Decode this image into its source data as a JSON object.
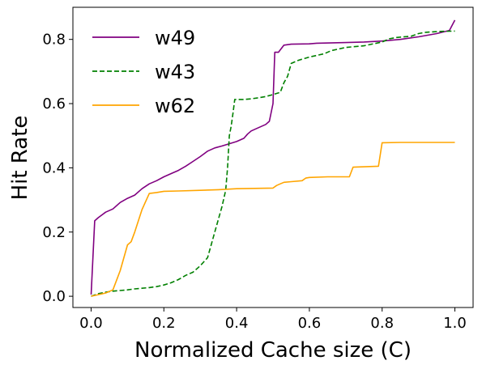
{
  "chart_data": {
    "type": "line",
    "title": "",
    "xlabel": "Normalized Cache size (C)",
    "ylabel": "Hit Rate",
    "xlim": [
      -0.05,
      1.05
    ],
    "ylim": [
      -0.035,
      0.9
    ],
    "xticks": [
      0.0,
      0.2,
      0.4,
      0.6,
      0.8,
      1.0
    ],
    "xtick_labels": [
      "0.0",
      "0.2",
      "0.4",
      "0.6",
      "0.8",
      "1.0"
    ],
    "yticks": [
      0.0,
      0.2,
      0.4,
      0.6,
      0.8
    ],
    "ytick_labels": [
      "0.0",
      "0.2",
      "0.4",
      "0.6",
      "0.8"
    ],
    "grid": false,
    "legend_position": "upper-left",
    "series": [
      {
        "name": "w49",
        "color": "#800080",
        "style": "solid",
        "points": [
          [
            0.0,
            0.005
          ],
          [
            0.01,
            0.235
          ],
          [
            0.02,
            0.245
          ],
          [
            0.04,
            0.262
          ],
          [
            0.06,
            0.272
          ],
          [
            0.08,
            0.292
          ],
          [
            0.1,
            0.305
          ],
          [
            0.12,
            0.315
          ],
          [
            0.14,
            0.335
          ],
          [
            0.16,
            0.35
          ],
          [
            0.18,
            0.36
          ],
          [
            0.2,
            0.372
          ],
          [
            0.22,
            0.382
          ],
          [
            0.24,
            0.392
          ],
          [
            0.26,
            0.405
          ],
          [
            0.28,
            0.42
          ],
          [
            0.3,
            0.435
          ],
          [
            0.32,
            0.452
          ],
          [
            0.34,
            0.462
          ],
          [
            0.36,
            0.468
          ],
          [
            0.38,
            0.475
          ],
          [
            0.4,
            0.482
          ],
          [
            0.42,
            0.492
          ],
          [
            0.43,
            0.505
          ],
          [
            0.44,
            0.515
          ],
          [
            0.46,
            0.525
          ],
          [
            0.48,
            0.535
          ],
          [
            0.49,
            0.545
          ],
          [
            0.5,
            0.6
          ],
          [
            0.505,
            0.76
          ],
          [
            0.515,
            0.76
          ],
          [
            0.53,
            0.782
          ],
          [
            0.55,
            0.785
          ],
          [
            0.6,
            0.786
          ],
          [
            0.62,
            0.788
          ],
          [
            0.7,
            0.79
          ],
          [
            0.75,
            0.792
          ],
          [
            0.8,
            0.795
          ],
          [
            0.85,
            0.8
          ],
          [
            0.9,
            0.808
          ],
          [
            0.95,
            0.818
          ],
          [
            0.985,
            0.828
          ],
          [
            1.0,
            0.86
          ]
        ]
      },
      {
        "name": "w43",
        "color": "#008000",
        "style": "dashed",
        "points": [
          [
            0.0,
            0.0
          ],
          [
            0.02,
            0.008
          ],
          [
            0.04,
            0.013
          ],
          [
            0.06,
            0.016
          ],
          [
            0.08,
            0.018
          ],
          [
            0.1,
            0.02
          ],
          [
            0.12,
            0.023
          ],
          [
            0.14,
            0.025
          ],
          [
            0.16,
            0.027
          ],
          [
            0.18,
            0.03
          ],
          [
            0.2,
            0.035
          ],
          [
            0.22,
            0.042
          ],
          [
            0.24,
            0.052
          ],
          [
            0.26,
            0.065
          ],
          [
            0.28,
            0.075
          ],
          [
            0.3,
            0.095
          ],
          [
            0.32,
            0.12
          ],
          [
            0.33,
            0.16
          ],
          [
            0.34,
            0.2
          ],
          [
            0.35,
            0.24
          ],
          [
            0.36,
            0.28
          ],
          [
            0.37,
            0.33
          ],
          [
            0.375,
            0.4
          ],
          [
            0.38,
            0.5
          ],
          [
            0.385,
            0.53
          ],
          [
            0.39,
            0.57
          ],
          [
            0.395,
            0.613
          ],
          [
            0.42,
            0.613
          ],
          [
            0.44,
            0.615
          ],
          [
            0.46,
            0.618
          ],
          [
            0.48,
            0.622
          ],
          [
            0.5,
            0.628
          ],
          [
            0.52,
            0.635
          ],
          [
            0.53,
            0.665
          ],
          [
            0.54,
            0.685
          ],
          [
            0.55,
            0.725
          ],
          [
            0.57,
            0.735
          ],
          [
            0.6,
            0.745
          ],
          [
            0.64,
            0.755
          ],
          [
            0.66,
            0.765
          ],
          [
            0.7,
            0.775
          ],
          [
            0.75,
            0.78
          ],
          [
            0.8,
            0.792
          ],
          [
            0.82,
            0.802
          ],
          [
            0.84,
            0.806
          ],
          [
            0.88,
            0.81
          ],
          [
            0.9,
            0.818
          ],
          [
            0.92,
            0.822
          ],
          [
            0.96,
            0.825
          ],
          [
            1.0,
            0.826
          ]
        ]
      },
      {
        "name": "w62",
        "color": "#ffa500",
        "style": "solid",
        "points": [
          [
            0.0,
            0.0
          ],
          [
            0.02,
            0.005
          ],
          [
            0.04,
            0.01
          ],
          [
            0.06,
            0.02
          ],
          [
            0.07,
            0.05
          ],
          [
            0.08,
            0.08
          ],
          [
            0.09,
            0.12
          ],
          [
            0.1,
            0.16
          ],
          [
            0.11,
            0.17
          ],
          [
            0.12,
            0.2
          ],
          [
            0.14,
            0.27
          ],
          [
            0.16,
            0.32
          ],
          [
            0.18,
            0.323
          ],
          [
            0.2,
            0.327
          ],
          [
            0.24,
            0.328
          ],
          [
            0.3,
            0.33
          ],
          [
            0.35,
            0.332
          ],
          [
            0.4,
            0.335
          ],
          [
            0.45,
            0.336
          ],
          [
            0.5,
            0.337
          ],
          [
            0.51,
            0.345
          ],
          [
            0.52,
            0.35
          ],
          [
            0.53,
            0.355
          ],
          [
            0.55,
            0.357
          ],
          [
            0.58,
            0.36
          ],
          [
            0.59,
            0.368
          ],
          [
            0.6,
            0.37
          ],
          [
            0.65,
            0.372
          ],
          [
            0.71,
            0.372
          ],
          [
            0.72,
            0.402
          ],
          [
            0.79,
            0.405
          ],
          [
            0.8,
            0.478
          ],
          [
            0.85,
            0.479
          ],
          [
            0.9,
            0.479
          ],
          [
            0.95,
            0.479
          ],
          [
            1.0,
            0.479
          ]
        ]
      }
    ]
  }
}
